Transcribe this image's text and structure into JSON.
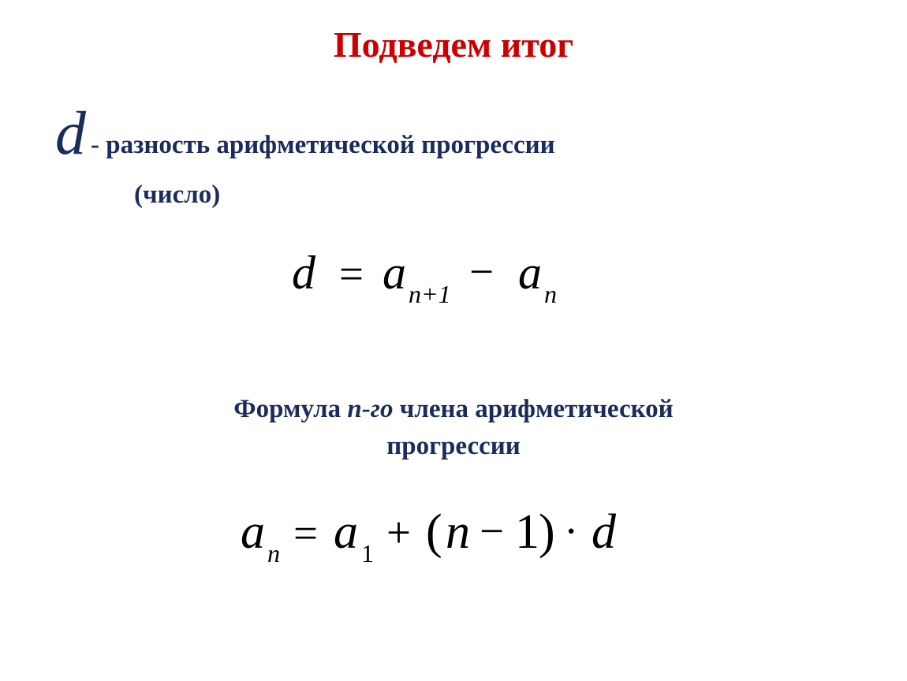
{
  "title": "Подведем итог",
  "d_symbol": "d",
  "definition_line1": "- разность арифметической прогрессии",
  "definition_line2": "(число)",
  "formula1": {
    "d": "d",
    "eq": "=",
    "a1": "a",
    "sub1": "n+1",
    "minus": "−",
    "a2": "a",
    "sub2": "n"
  },
  "subtitle_part1": "Формула ",
  "subtitle_italic": "n-го",
  "subtitle_part2": " члена арифметической",
  "subtitle_line2": "прогрессии",
  "formula2": {
    "a": "a",
    "sub_n": "n",
    "eq": "=",
    "a1": "a",
    "sub_1": "1",
    "plus": "+",
    "lparen": "(",
    "n": "n",
    "minus": "−",
    "one": "1",
    "rparen": ")",
    "dot": "·",
    "d": "d"
  },
  "colors": {
    "title": "#CC0000",
    "text": "#1a2c5b",
    "formula": "#000000",
    "background": "#ffffff"
  }
}
